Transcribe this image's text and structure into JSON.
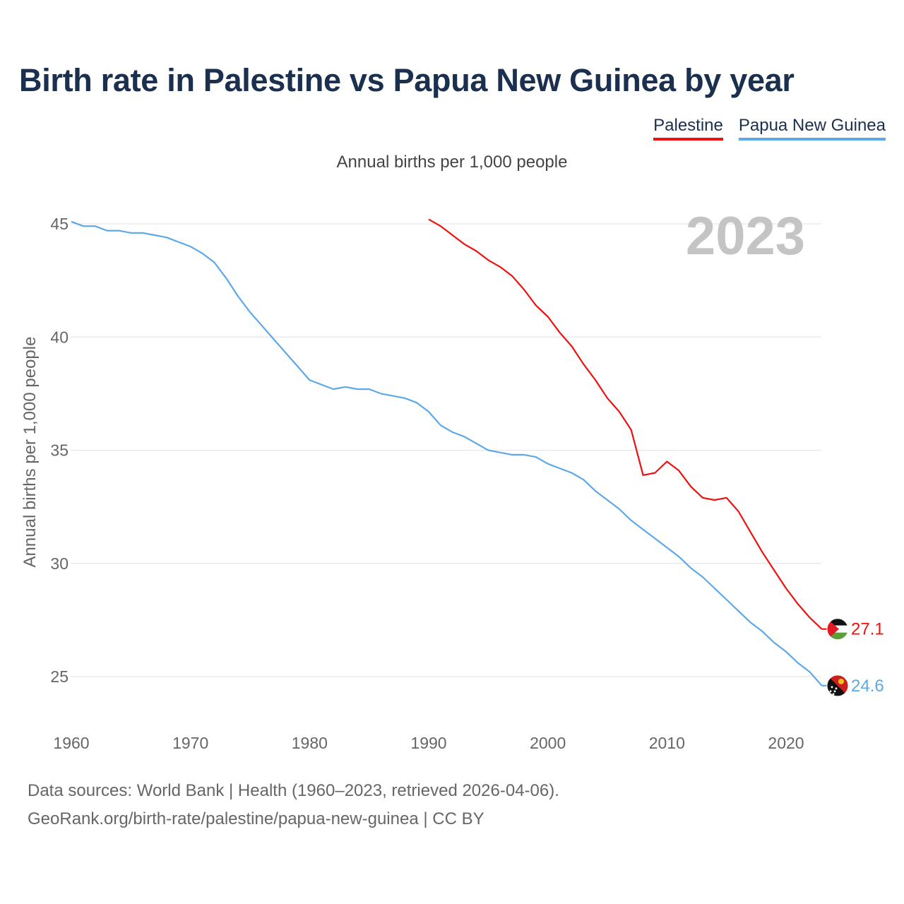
{
  "title": "Birth rate in Palestine vs Papua New Guinea by year",
  "subtitle": "Annual births per 1,000 people",
  "legend": [
    {
      "name": "Palestine",
      "color": "#ee1111"
    },
    {
      "name": "Papua New Guinea",
      "color": "#5fa8e8"
    }
  ],
  "year_label": "2023",
  "footer": {
    "line1": "Data sources: World Bank | Health (1960–2023, retrieved 2026-04-06).",
    "line2": "GeoRank.org/birth-rate/palestine/papua-new-guinea | CC BY"
  },
  "chart_data": {
    "type": "line",
    "title": "Birth rate in Palestine vs Papua New Guinea by year",
    "xlabel": "",
    "ylabel": "Annual births per 1,000 people",
    "xlim": [
      1960,
      2023
    ],
    "ylim": [
      24,
      46
    ],
    "yticks": [
      25,
      30,
      35,
      40,
      45
    ],
    "xticks": [
      1960,
      1970,
      1980,
      1990,
      2000,
      2010,
      2020
    ],
    "grid": true,
    "series": [
      {
        "name": "Palestine",
        "color": "#ee1111",
        "end_label": "27.1",
        "x": [
          1990,
          1991,
          1992,
          1993,
          1994,
          1995,
          1996,
          1997,
          1998,
          1999,
          2000,
          2001,
          2002,
          2003,
          2004,
          2005,
          2006,
          2007,
          2008,
          2009,
          2010,
          2011,
          2012,
          2013,
          2014,
          2015,
          2016,
          2017,
          2018,
          2019,
          2020,
          2021,
          2022,
          2023
        ],
        "values": [
          45.2,
          44.9,
          44.5,
          44.1,
          43.8,
          43.4,
          43.1,
          42.7,
          42.1,
          41.4,
          40.9,
          40.2,
          39.6,
          38.8,
          38.1,
          37.3,
          36.7,
          35.9,
          33.9,
          34.0,
          34.5,
          34.1,
          33.4,
          32.9,
          32.8,
          32.9,
          32.3,
          31.4,
          30.5,
          29.7,
          28.9,
          28.2,
          27.6,
          27.1
        ]
      },
      {
        "name": "Papua New Guinea",
        "color": "#5fa8e8",
        "end_label": "24.6",
        "x": [
          1960,
          1961,
          1962,
          1963,
          1964,
          1965,
          1966,
          1967,
          1968,
          1969,
          1970,
          1971,
          1972,
          1973,
          1974,
          1975,
          1976,
          1977,
          1978,
          1979,
          1980,
          1981,
          1982,
          1983,
          1984,
          1985,
          1986,
          1987,
          1988,
          1989,
          1990,
          1991,
          1992,
          1993,
          1994,
          1995,
          1996,
          1997,
          1998,
          1999,
          2000,
          2001,
          2002,
          2003,
          2004,
          2005,
          2006,
          2007,
          2008,
          2009,
          2010,
          2011,
          2012,
          2013,
          2014,
          2015,
          2016,
          2017,
          2018,
          2019,
          2020,
          2021,
          2022,
          2023
        ],
        "values": [
          45.1,
          44.9,
          44.9,
          44.7,
          44.7,
          44.6,
          44.6,
          44.5,
          44.4,
          44.2,
          44.0,
          43.7,
          43.3,
          42.6,
          41.8,
          41.1,
          40.5,
          39.9,
          39.3,
          38.7,
          38.1,
          37.9,
          37.7,
          37.8,
          37.7,
          37.7,
          37.5,
          37.4,
          37.3,
          37.1,
          36.7,
          36.1,
          35.8,
          35.6,
          35.3,
          35.0,
          34.9,
          34.8,
          34.8,
          34.7,
          34.4,
          34.2,
          34.0,
          33.7,
          33.2,
          32.8,
          32.4,
          31.9,
          31.5,
          31.1,
          30.7,
          30.3,
          29.8,
          29.4,
          28.9,
          28.4,
          27.9,
          27.4,
          27.0,
          26.5,
          26.1,
          25.6,
          25.2,
          24.6
        ]
      }
    ]
  }
}
